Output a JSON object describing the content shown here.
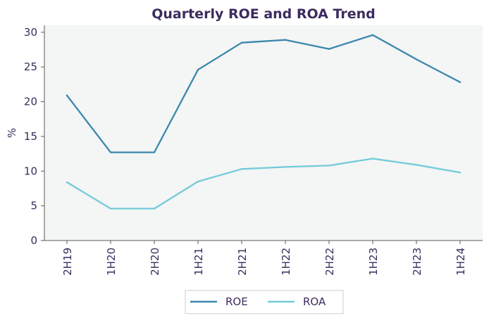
{
  "colors": {
    "text": "#3b2c5e",
    "plot_bg": "#f4f5f5",
    "axis": "#5a5a5a",
    "roe": "#3a87ad",
    "roa": "#72cbd9"
  },
  "chart_data": {
    "type": "line",
    "title": "Quarterly ROE and ROA Trend",
    "xlabel": "",
    "ylabel": "%",
    "categories": [
      "2H19",
      "1H20",
      "2H20",
      "1H21",
      "2H21",
      "1H22",
      "2H22",
      "1H23",
      "2H23",
      "1H24"
    ],
    "ylim": [
      0,
      31
    ],
    "yticks": [
      0,
      5,
      10,
      15,
      20,
      25,
      30
    ],
    "grid": false,
    "legend_position": "bottom-center",
    "series": [
      {
        "name": "ROE",
        "color": "#3a87ad",
        "values": [
          20.9,
          12.7,
          12.7,
          24.6,
          28.5,
          28.9,
          27.6,
          29.6,
          26.1,
          22.8
        ]
      },
      {
        "name": "ROA",
        "color": "#72cbd9",
        "values": [
          8.4,
          4.6,
          4.6,
          8.5,
          10.3,
          10.6,
          10.8,
          11.8,
          10.9,
          9.8
        ]
      }
    ]
  }
}
